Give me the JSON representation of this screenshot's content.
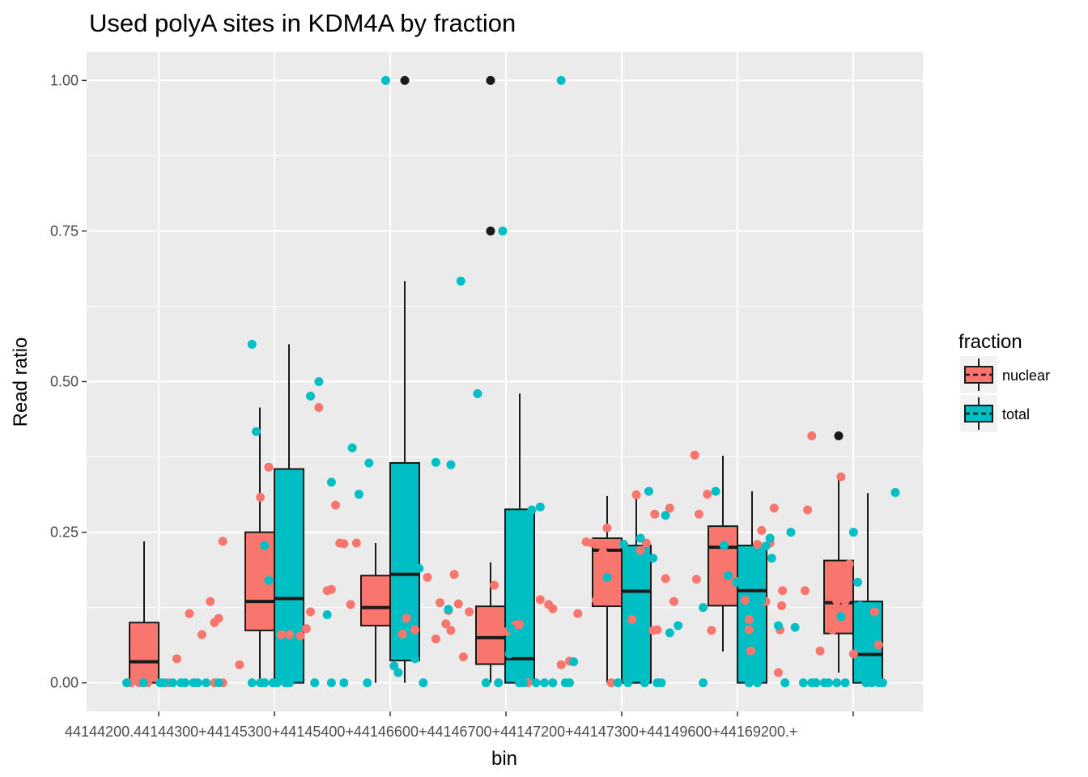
{
  "chart_data": {
    "type": "boxplot",
    "title": "Used polyA sites in KDM4A by fraction",
    "xlabel": "bin",
    "ylabel": "Read ratio",
    "ylim": [
      -0.0475,
      1.0475
    ],
    "yticks": [
      "0.00",
      "0.25",
      "0.50",
      "0.75",
      "1.00"
    ],
    "ytick_values": [
      0,
      0.25,
      0.5,
      0.75,
      1.0
    ],
    "x_tick_text": "44144200.44144300+44145300+44145400+44146600+44146700+44147200+44147300+44149600+44169200.+",
    "legend": {
      "title": "fraction",
      "position": "right",
      "entries": [
        {
          "name": "nuclear",
          "color": "#F8766D"
        },
        {
          "name": "total",
          "color": "#00BFC4"
        }
      ]
    },
    "grid": true,
    "panel_color": "#EBEBEB",
    "series": [
      {
        "name": "nuclear",
        "color": "#F8766D",
        "boxes": [
          {
            "group": 1,
            "q1": 0.0,
            "median": 0.035,
            "q3": 0.1,
            "whisker_low": 0.0,
            "whisker_high": 0.235
          },
          {
            "group": 2,
            "q1": 0.087,
            "median": 0.135,
            "q3": 0.25,
            "whisker_low": 0.0,
            "whisker_high": 0.457
          },
          {
            "group": 3,
            "q1": 0.095,
            "median": 0.125,
            "q3": 0.178,
            "whisker_low": 0.0,
            "whisker_high": 0.232
          },
          {
            "group": 4,
            "q1": 0.031,
            "median": 0.075,
            "q3": 0.127,
            "whisker_low": 0.0,
            "whisker_high": 0.2,
            "outliers": [
              1.0,
              0.75
            ]
          },
          {
            "group": 5,
            "q1": 0.127,
            "median": 0.22,
            "q3": 0.24,
            "whisker_low": 0.0,
            "whisker_high": 0.31
          },
          {
            "group": 6,
            "q1": 0.128,
            "median": 0.225,
            "q3": 0.26,
            "whisker_low": 0.052,
            "whisker_high": 0.377
          },
          {
            "group": 7,
            "q1": 0.082,
            "median": 0.133,
            "q3": 0.203,
            "whisker_low": 0.017,
            "whisker_high": 0.34,
            "outliers": [
              0.41
            ]
          }
        ],
        "points": [
          [
            1.05,
            0.0
          ],
          [
            1.15,
            0.0
          ],
          [
            1.25,
            0.0
          ],
          [
            1.4,
            0.0
          ],
          [
            1.5,
            0.0
          ],
          [
            1.6,
            0.04
          ],
          [
            1.75,
            0.115
          ],
          [
            1.9,
            0.08
          ],
          [
            2.0,
            0.135
          ],
          [
            2.05,
            0.1
          ],
          [
            2.1,
            0.107
          ],
          [
            2.15,
            0.235
          ],
          [
            2.05,
            0.0
          ],
          [
            2.15,
            0.0
          ],
          [
            2.35,
            0.03
          ],
          [
            2.48,
            0.113
          ],
          [
            2.48,
            0.232
          ],
          [
            2.6,
            0.308
          ],
          [
            2.7,
            0.358
          ],
          [
            2.85,
            0.08
          ],
          [
            2.95,
            0.08
          ],
          [
            3.08,
            0.078
          ],
          [
            3.15,
            0.09
          ],
          [
            3.2,
            0.118
          ],
          [
            3.3,
            0.457
          ],
          [
            3.4,
            0.153
          ],
          [
            3.45,
            0.155
          ],
          [
            3.5,
            0.295
          ],
          [
            3.55,
            0.232
          ],
          [
            3.6,
            0.231
          ],
          [
            3.68,
            0.13
          ],
          [
            3.75,
            0.232
          ],
          [
            4.3,
            0.081
          ],
          [
            4.35,
            0.107
          ],
          [
            4.45,
            0.088
          ],
          [
            4.6,
            0.175
          ],
          [
            4.7,
            0.073
          ],
          [
            4.75,
            0.133
          ],
          [
            4.82,
            0.098
          ],
          [
            4.85,
            0.12
          ],
          [
            4.88,
            0.087
          ],
          [
            4.92,
            0.18
          ],
          [
            4.97,
            0.131
          ],
          [
            5.03,
            0.043
          ],
          [
            5.1,
            0.118
          ],
          [
            5.4,
            0.162
          ],
          [
            5.45,
            0.0
          ],
          [
            5.55,
            0.085
          ],
          [
            5.65,
            0.096
          ],
          [
            5.7,
            0.097
          ],
          [
            5.8,
            0.0
          ],
          [
            5.95,
            0.138
          ],
          [
            6.05,
            0.13
          ],
          [
            6.1,
            0.123
          ],
          [
            6.2,
            0.03
          ],
          [
            6.3,
            0.036
          ],
          [
            6.4,
            0.115
          ],
          [
            6.5,
            0.234
          ],
          [
            6.57,
            0.232
          ],
          [
            6.7,
            0.217
          ],
          [
            6.62,
            0.137
          ],
          [
            6.75,
            0.257
          ],
          [
            6.8,
            0.0
          ],
          [
            7.05,
            0.105
          ],
          [
            7.1,
            0.312
          ],
          [
            7.15,
            0.22
          ],
          [
            7.22,
            0.232
          ],
          [
            7.3,
            0.087
          ],
          [
            7.32,
            0.28
          ],
          [
            7.35,
            0.088
          ],
          [
            7.45,
            0.173
          ],
          [
            7.5,
            0.29
          ],
          [
            7.55,
            0.135
          ],
          [
            7.8,
            0.378
          ],
          [
            7.82,
            0.172
          ],
          [
            7.85,
            0.28
          ],
          [
            7.95,
            0.313
          ],
          [
            8.0,
            0.087
          ],
          [
            8.3,
            0.168
          ],
          [
            8.4,
            0.137
          ],
          [
            8.45,
            0.105
          ],
          [
            8.45,
            0.088
          ],
          [
            8.47,
            0.053
          ],
          [
            8.55,
            0.23
          ],
          [
            8.6,
            0.253
          ],
          [
            8.65,
            0.135
          ],
          [
            8.7,
            0.232
          ],
          [
            8.75,
            0.29
          ],
          [
            8.8,
            0.017
          ],
          [
            8.82,
            0.088
          ],
          [
            8.84,
            0.128
          ],
          [
            8.85,
            0.153
          ],
          [
            9.12,
            0.153
          ],
          [
            9.15,
            0.287
          ],
          [
            9.2,
            0.41
          ],
          [
            9.3,
            0.053
          ],
          [
            9.45,
            0.088
          ],
          [
            9.5,
            0.136
          ],
          [
            9.55,
            0.342
          ],
          [
            9.6,
            0.136
          ],
          [
            9.65,
            0.197
          ],
          [
            9.7,
            0.048
          ],
          [
            9.95,
            0.118
          ],
          [
            10.0,
            0.063
          ]
        ]
      },
      {
        "name": "total",
        "color": "#00BFC4",
        "boxes": [
          {
            "group": 1,
            "q1": 0.0,
            "median": 0.0,
            "q3": 0.0,
            "whisker_low": 0.0,
            "whisker_high": 0.0
          },
          {
            "group": 2,
            "q1": 0.0,
            "median": 0.14,
            "q3": 0.355,
            "whisker_low": 0.0,
            "whisker_high": 0.562
          },
          {
            "group": 3,
            "q1": 0.037,
            "median": 0.18,
            "q3": 0.365,
            "whisker_low": 0.0,
            "whisker_high": 0.667,
            "outliers": [
              1.0
            ]
          },
          {
            "group": 4,
            "q1": 0.0,
            "median": 0.04,
            "q3": 0.288,
            "whisker_low": 0.0,
            "whisker_high": 0.48
          },
          {
            "group": 5,
            "q1": 0.0,
            "median": 0.152,
            "q3": 0.228,
            "whisker_low": 0.0,
            "whisker_high": 0.318
          },
          {
            "group": 6,
            "q1": 0.0,
            "median": 0.153,
            "q3": 0.228,
            "whisker_low": 0.0,
            "whisker_high": 0.318
          },
          {
            "group": 7,
            "q1": 0.0,
            "median": 0.047,
            "q3": 0.135,
            "whisker_low": 0.0,
            "whisker_high": 0.315
          }
        ],
        "points": [
          [
            1.0,
            0.0
          ],
          [
            1.2,
            0.0
          ],
          [
            1.4,
            0.0
          ],
          [
            1.45,
            0.0
          ],
          [
            1.55,
            0.0
          ],
          [
            1.65,
            0.0
          ],
          [
            1.7,
            0.0
          ],
          [
            1.8,
            0.0
          ],
          [
            1.85,
            0.0
          ],
          [
            1.95,
            0.0
          ],
          [
            2.1,
            0.0
          ],
          [
            2.5,
            0.0
          ],
          [
            2.6,
            0.0
          ],
          [
            2.65,
            0.0
          ],
          [
            2.75,
            0.0
          ],
          [
            2.5,
            0.562
          ],
          [
            2.55,
            0.417
          ],
          [
            2.65,
            0.228
          ],
          [
            2.7,
            0.17
          ],
          [
            2.8,
            0.0
          ],
          [
            2.9,
            0.0
          ],
          [
            2.95,
            0.0
          ],
          [
            3.0,
            0.282
          ],
          [
            3.2,
            0.476
          ],
          [
            3.25,
            0.0
          ],
          [
            3.3,
            0.5
          ],
          [
            3.4,
            0.113
          ],
          [
            3.45,
            0.333
          ],
          [
            3.45,
            0.0
          ],
          [
            3.6,
            0.0
          ],
          [
            3.7,
            0.39
          ],
          [
            3.78,
            0.313
          ],
          [
            3.9,
            0.365
          ],
          [
            3.88,
            0.0
          ],
          [
            4.1,
            1.0
          ],
          [
            4.2,
            0.028
          ],
          [
            4.25,
            0.017
          ],
          [
            4.45,
            0.04
          ],
          [
            4.5,
            0.19
          ],
          [
            4.55,
            0.0
          ],
          [
            4.7,
            0.366
          ],
          [
            4.85,
            0.122
          ],
          [
            4.88,
            0.362
          ],
          [
            5.0,
            0.667
          ],
          [
            5.2,
            0.48
          ],
          [
            5.3,
            0.0
          ],
          [
            5.45,
            0.0
          ],
          [
            5.5,
            0.75
          ],
          [
            5.6,
            0.09
          ],
          [
            5.58,
            0.048
          ],
          [
            5.7,
            0.0
          ],
          [
            5.75,
            0.0
          ],
          [
            5.85,
            0.287
          ],
          [
            5.9,
            0.0
          ],
          [
            5.95,
            0.292
          ],
          [
            6.0,
            0.0
          ],
          [
            6.1,
            0.0
          ],
          [
            6.2,
            1.0
          ],
          [
            6.25,
            0.0
          ],
          [
            6.3,
            0.0
          ],
          [
            6.35,
            0.035
          ],
          [
            6.75,
            0.175
          ],
          [
            6.88,
            0.0
          ],
          [
            6.95,
            0.23
          ],
          [
            7.0,
            0.0
          ],
          [
            7.02,
            0.14
          ],
          [
            7.15,
            0.24
          ],
          [
            7.2,
            0.0
          ],
          [
            7.25,
            0.318
          ],
          [
            7.3,
            0.207
          ],
          [
            7.35,
            0.0
          ],
          [
            7.4,
            0.0
          ],
          [
            7.45,
            0.278
          ],
          [
            7.5,
            0.083
          ],
          [
            7.6,
            0.095
          ],
          [
            7.9,
            0.125
          ],
          [
            7.9,
            0.0
          ],
          [
            8.05,
            0.318
          ],
          [
            8.15,
            0.228
          ],
          [
            8.2,
            0.178
          ],
          [
            8.3,
            0.167
          ],
          [
            8.45,
            0.0
          ],
          [
            8.55,
            0.0
          ],
          [
            8.6,
            0.138
          ],
          [
            8.65,
            0.227
          ],
          [
            8.7,
            0.24
          ],
          [
            8.72,
            0.207
          ],
          [
            8.8,
            0.095
          ],
          [
            8.88,
            0.0
          ],
          [
            8.95,
            0.25
          ],
          [
            9.0,
            0.092
          ],
          [
            9.1,
            0.0
          ],
          [
            9.2,
            0.0
          ],
          [
            9.25,
            0.0
          ],
          [
            9.35,
            0.0
          ],
          [
            9.4,
            0.0
          ],
          [
            9.5,
            0.0
          ],
          [
            9.55,
            0.11
          ],
          [
            9.6,
            0.0
          ],
          [
            9.7,
            0.25
          ],
          [
            9.75,
            0.167
          ],
          [
            9.78,
            0.128
          ],
          [
            9.85,
            0.0
          ],
          [
            9.92,
            0.0
          ],
          [
            10.0,
            0.0
          ],
          [
            10.05,
            0.0
          ],
          [
            10.2,
            0.316
          ]
        ]
      }
    ]
  }
}
